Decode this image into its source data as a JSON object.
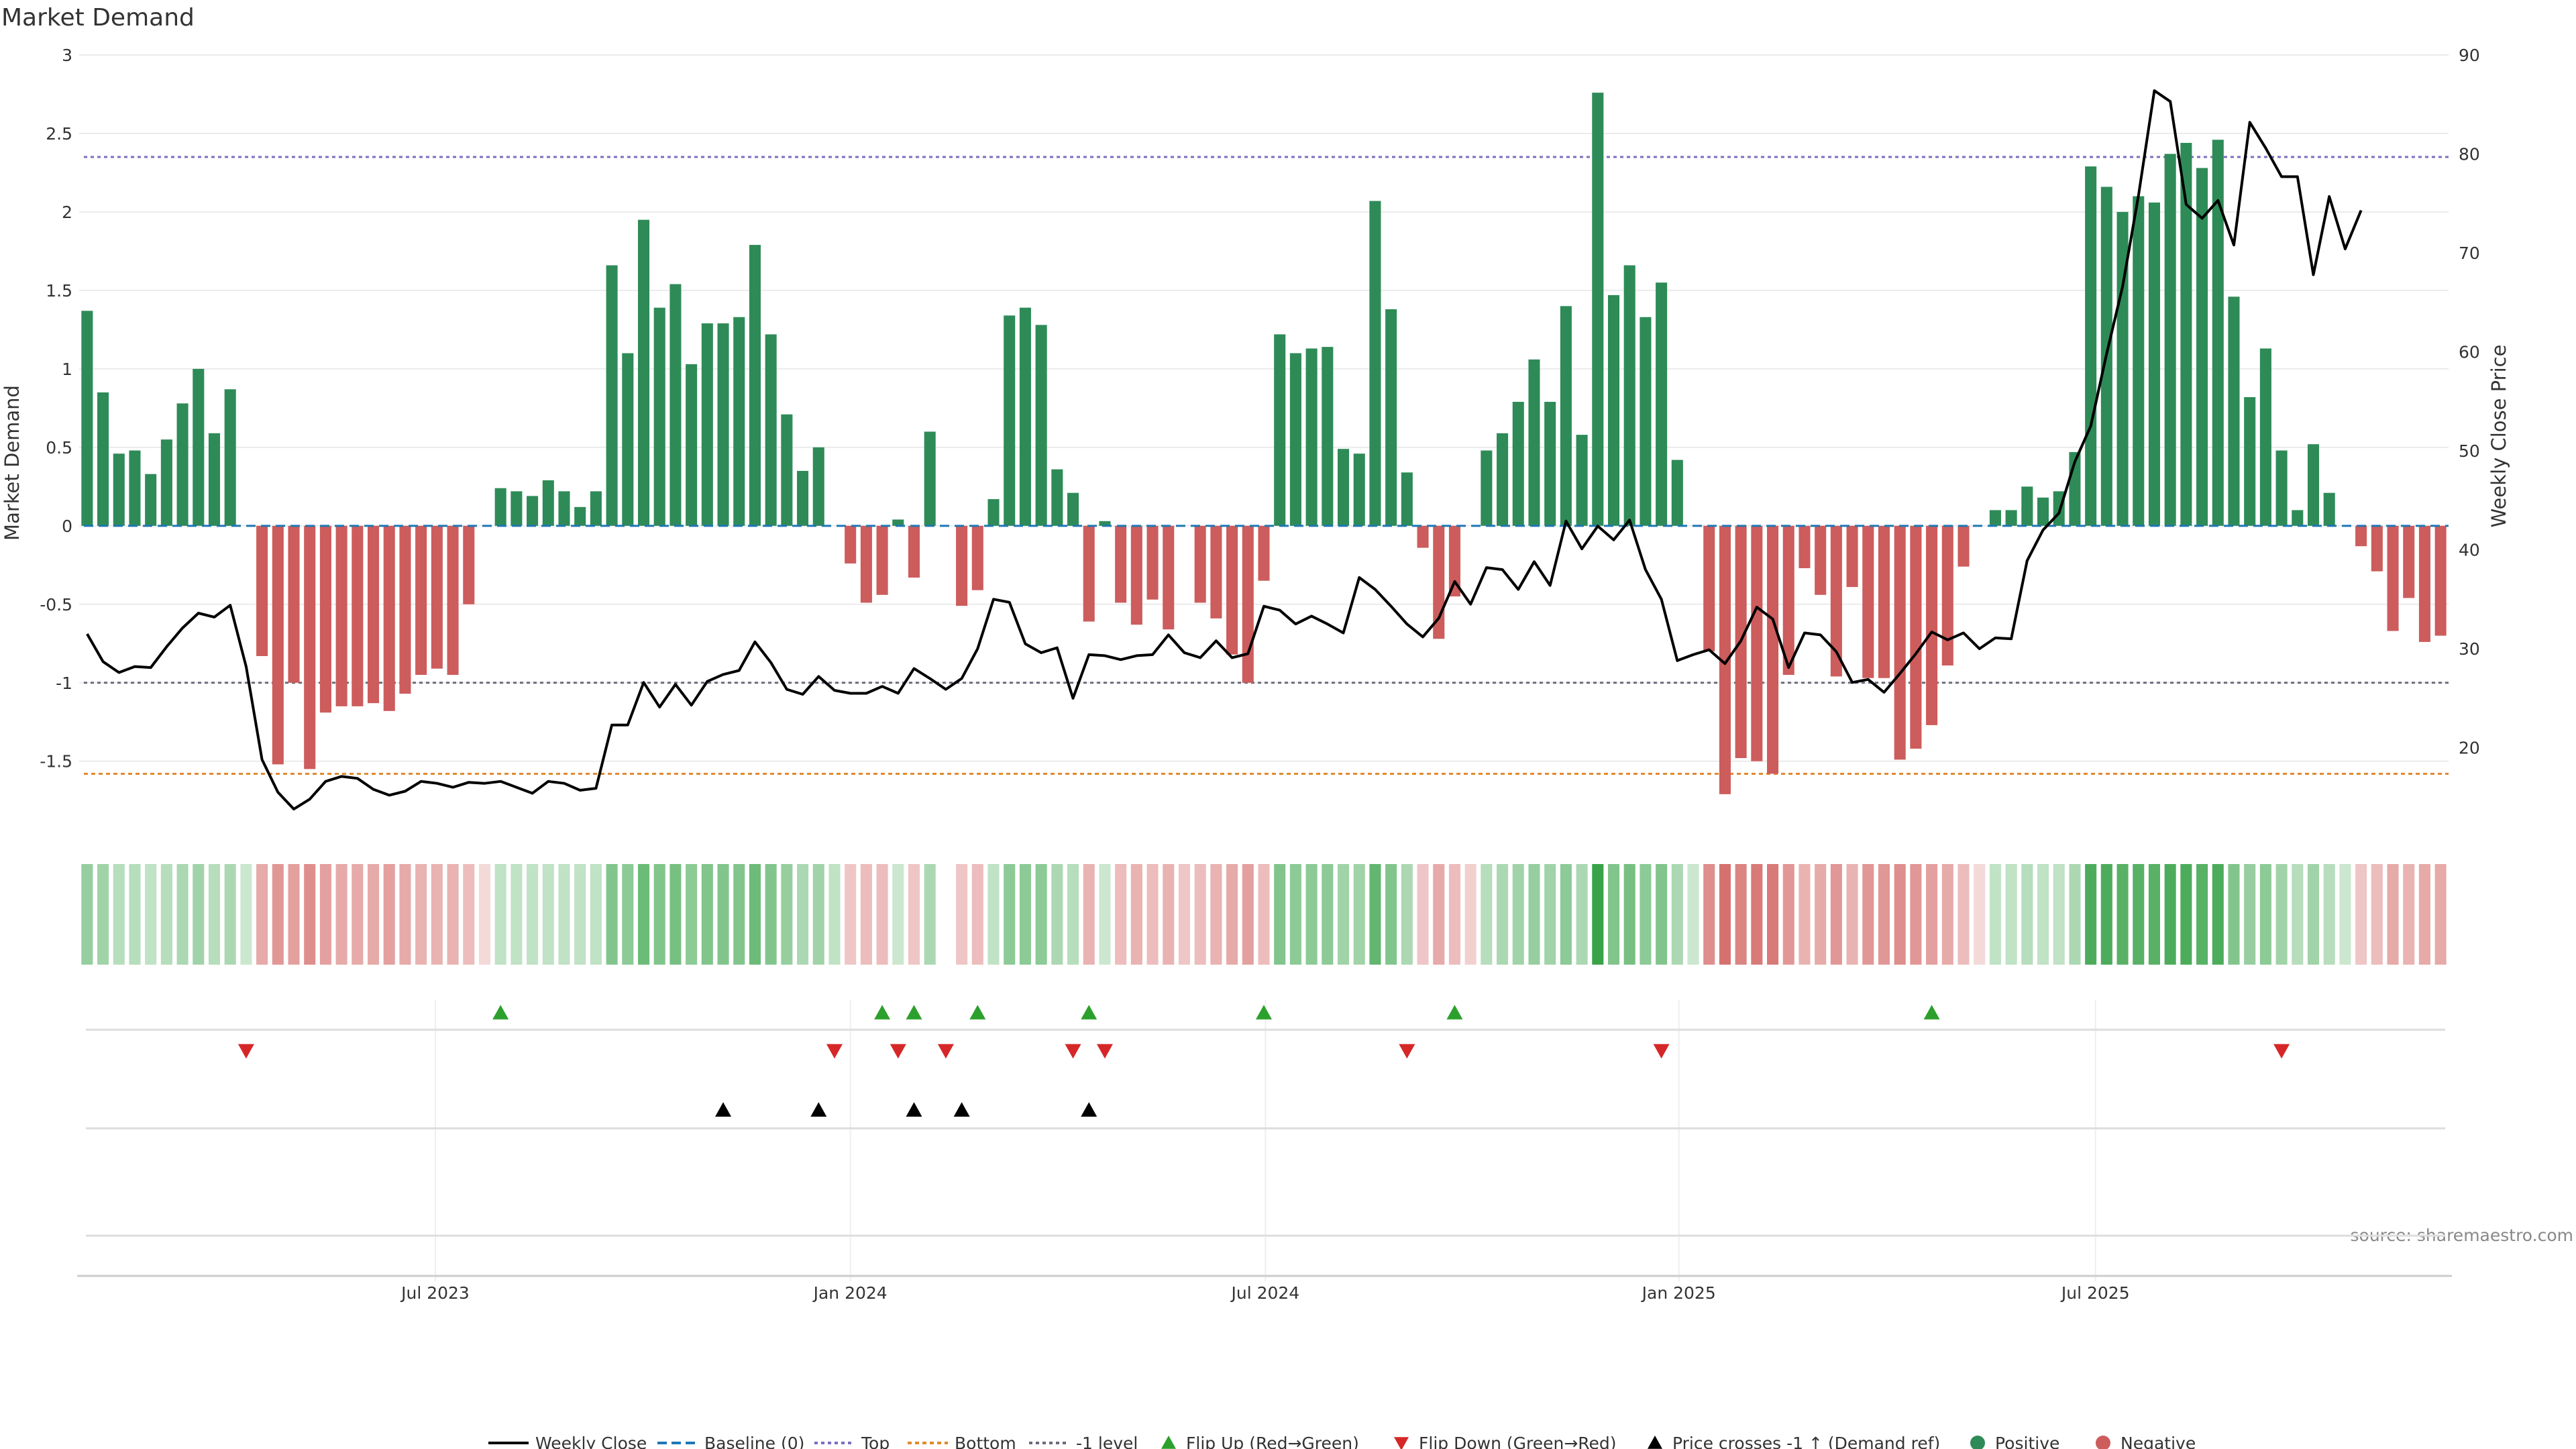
{
  "chart_data": {
    "type": "bar",
    "title": "Market Demand",
    "ylabel": "Market Demand",
    "ylabel_right": "Weekly Close Price",
    "ylim": [
      -1.95,
      3.0
    ],
    "ylim_right": [
      11.5,
      90
    ],
    "yticks": [
      "3",
      "2.5",
      "2",
      "1.5",
      "1",
      "0.5",
      "0",
      "-0.5",
      "-1",
      "-1.5"
    ],
    "yticks_right": [
      "90",
      "80",
      "70",
      "60",
      "50",
      "40",
      "30",
      "20"
    ],
    "x_ticks": [
      "Jul 2023",
      "Jan 2024",
      "Jul 2024",
      "Jan 2025",
      "Jul 2025"
    ],
    "reference_lines": {
      "top": 2.35,
      "bottom": -1.58,
      "minus_one": -1.0,
      "baseline": 0
    },
    "demand_values": [
      1.37,
      0.85,
      0.46,
      0.48,
      0.33,
      0.55,
      0.78,
      1.0,
      0.59,
      0.87,
      0,
      -0.83,
      -1.52,
      -1.0,
      -1.55,
      -1.19,
      -1.15,
      -1.15,
      -1.13,
      -1.18,
      -1.07,
      -0.95,
      -0.91,
      -0.95,
      -0.5,
      0,
      0.24,
      0.22,
      0.19,
      0.29,
      0.22,
      0.12,
      0.22,
      1.66,
      1.1,
      1.95,
      1.39,
      1.54,
      1.03,
      1.29,
      1.29,
      1.33,
      1.79,
      1.22,
      0.71,
      0.35,
      0.5,
      0,
      -0.24,
      -0.49,
      -0.44,
      0.04,
      -0.33,
      0.6,
      0,
      -0.51,
      -0.41,
      0.17,
      1.34,
      1.39,
      1.28,
      0.36,
      0.21,
      -0.61,
      0.03,
      -0.49,
      -0.63,
      -0.47,
      -0.66,
      0,
      -0.49,
      -0.59,
      -0.82,
      -1.0,
      -0.35,
      1.22,
      1.1,
      1.13,
      1.14,
      0.49,
      0.46,
      2.07,
      1.38,
      0.34,
      -0.14,
      -0.72,
      -0.45,
      0,
      0.48,
      0.59,
      0.79,
      1.06,
      0.79,
      1.4,
      0.58,
      2.76,
      1.47,
      1.66,
      1.33,
      1.55,
      0.42,
      0,
      -0.8,
      -1.71,
      -1.48,
      -1.5,
      -1.58,
      -0.95,
      -0.27,
      -0.44,
      -0.96,
      -0.39,
      -0.97,
      -0.97,
      -1.49,
      -1.42,
      -1.27,
      -0.89,
      -0.26,
      0,
      0.1,
      0.1,
      0.25,
      0.18,
      0.22,
      0.47,
      2.29,
      2.16,
      2.0,
      2.1,
      2.06,
      2.37,
      2.44,
      2.28,
      2.46,
      1.46,
      0.82,
      1.13,
      0.48,
      0.1,
      0.52,
      0.21,
      0,
      -0.13,
      -0.29,
      -0.67,
      -0.46,
      -0.74,
      -0.7
    ],
    "weekly_close": [
      31.5,
      28.7,
      27.6,
      28.2,
      28.1,
      30.2,
      32.1,
      33.6,
      33.2,
      34.4,
      28.2,
      18.8,
      15.5,
      13.8,
      14.8,
      16.6,
      17.1,
      16.9,
      15.8,
      15.2,
      15.6,
      16.6,
      16.4,
      16.0,
      16.5,
      16.4,
      16.6,
      16.0,
      15.4,
      16.6,
      16.4,
      15.7,
      15.9,
      22.3,
      22.3,
      26.6,
      24.1,
      26.4,
      24.3,
      26.7,
      27.4,
      27.8,
      30.7,
      28.6,
      25.9,
      25.4,
      27.2,
      25.8,
      25.5,
      25.5,
      26.2,
      25.5,
      28.0,
      27.0,
      25.9,
      27.0,
      30.0,
      35.0,
      34.7,
      30.5,
      29.6,
      30.1,
      25.0,
      29.4,
      29.3,
      28.9,
      29.3,
      29.4,
      31.4,
      29.6,
      29.1,
      30.8,
      29.1,
      29.5,
      34.3,
      33.9,
      32.5,
      33.3,
      32.5,
      31.6,
      37.2,
      36.0,
      34.3,
      32.5,
      31.2,
      33.1,
      36.8,
      34.5,
      38.2,
      38.0,
      36.0,
      38.8,
      36.4,
      42.9,
      40.1,
      42.4,
      41.0,
      43.0,
      38.0,
      35.0,
      28.8,
      29.4,
      29.9,
      28.5,
      30.8,
      34.2,
      33.0,
      28.1,
      31.6,
      31.4,
      29.7,
      26.6,
      26.9,
      25.6,
      27.5,
      29.5,
      31.7,
      30.9,
      31.6,
      30.0,
      31.1,
      31.0,
      38.9,
      42.0,
      43.7,
      48.9,
      52.5,
      59.8,
      66.6,
      75.8,
      86.4,
      85.3,
      74.9,
      73.5,
      75.3,
      70.8,
      83.2,
      80.6,
      77.7,
      77.7,
      67.8,
      75.7,
      70.4,
      74.3
    ],
    "strip_alphas": [
      0.5,
      0.45,
      0.35,
      0.35,
      0.3,
      0.35,
      0.4,
      0.45,
      0.35,
      0.4,
      0.25,
      0.45,
      0.55,
      0.5,
      0.6,
      0.5,
      0.45,
      0.45,
      0.45,
      0.5,
      0.45,
      0.4,
      0.4,
      0.4,
      0.35,
      0.2,
      0.3,
      0.3,
      0.3,
      0.3,
      0.3,
      0.3,
      0.3,
      0.6,
      0.55,
      0.7,
      0.6,
      0.65,
      0.55,
      0.6,
      0.6,
      0.6,
      0.7,
      0.6,
      0.5,
      0.4,
      0.45,
      0.3,
      0.3,
      0.35,
      0.35,
      0.25,
      0.3,
      0.4,
      0.0,
      0.3,
      0.35,
      0.3,
      0.55,
      0.55,
      0.55,
      0.4,
      0.35,
      0.4,
      0.25,
      0.35,
      0.4,
      0.35,
      0.4,
      0.3,
      0.35,
      0.4,
      0.45,
      0.5,
      0.35,
      0.6,
      0.55,
      0.55,
      0.55,
      0.45,
      0.45,
      0.75,
      0.6,
      0.4,
      0.3,
      0.45,
      0.35,
      0.25,
      0.35,
      0.4,
      0.45,
      0.5,
      0.45,
      0.55,
      0.4,
      0.95,
      0.6,
      0.65,
      0.55,
      0.6,
      0.4,
      0.25,
      0.6,
      0.75,
      0.65,
      0.7,
      0.7,
      0.55,
      0.4,
      0.45,
      0.55,
      0.4,
      0.55,
      0.55,
      0.6,
      0.55,
      0.5,
      0.45,
      0.35,
      0.2,
      0.3,
      0.3,
      0.35,
      0.3,
      0.3,
      0.4,
      0.85,
      0.85,
      0.8,
      0.8,
      0.8,
      0.85,
      0.85,
      0.8,
      0.85,
      0.6,
      0.5,
      0.55,
      0.45,
      0.35,
      0.45,
      0.35,
      0.25,
      0.3,
      0.35,
      0.45,
      0.4,
      0.45,
      0.45
    ],
    "flip_up_weeks": [
      26,
      50,
      52,
      56,
      63,
      74,
      86,
      116
    ],
    "flip_down_weeks": [
      10,
      47,
      51,
      54,
      62,
      64,
      83,
      99,
      138
    ],
    "price_cross_weeks": [
      40,
      46,
      52,
      55,
      63
    ],
    "series": [
      {
        "name": "Weekly Close",
        "color": "#000000"
      },
      {
        "name": "Baseline (0)",
        "color": "#1f77b4"
      },
      {
        "name": "Top",
        "color": "#7b6fbf"
      },
      {
        "name": "Bottom",
        "color": "#e08a2c"
      },
      {
        "name": "-1 level",
        "color": "#6b6b7b"
      },
      {
        "name": "Flip Up (Red→Green)",
        "color": "#2ca02c"
      },
      {
        "name": "Flip Down (Green→Red)",
        "color": "#d62728"
      },
      {
        "name": "Price crosses -1 ↑ (Demand ref)",
        "color": "#000000"
      },
      {
        "name": "Positive",
        "color": "#2e8b57"
      },
      {
        "name": "Negative",
        "color": "#cd5c5c"
      }
    ],
    "source": "source: sharemaestro.com"
  }
}
